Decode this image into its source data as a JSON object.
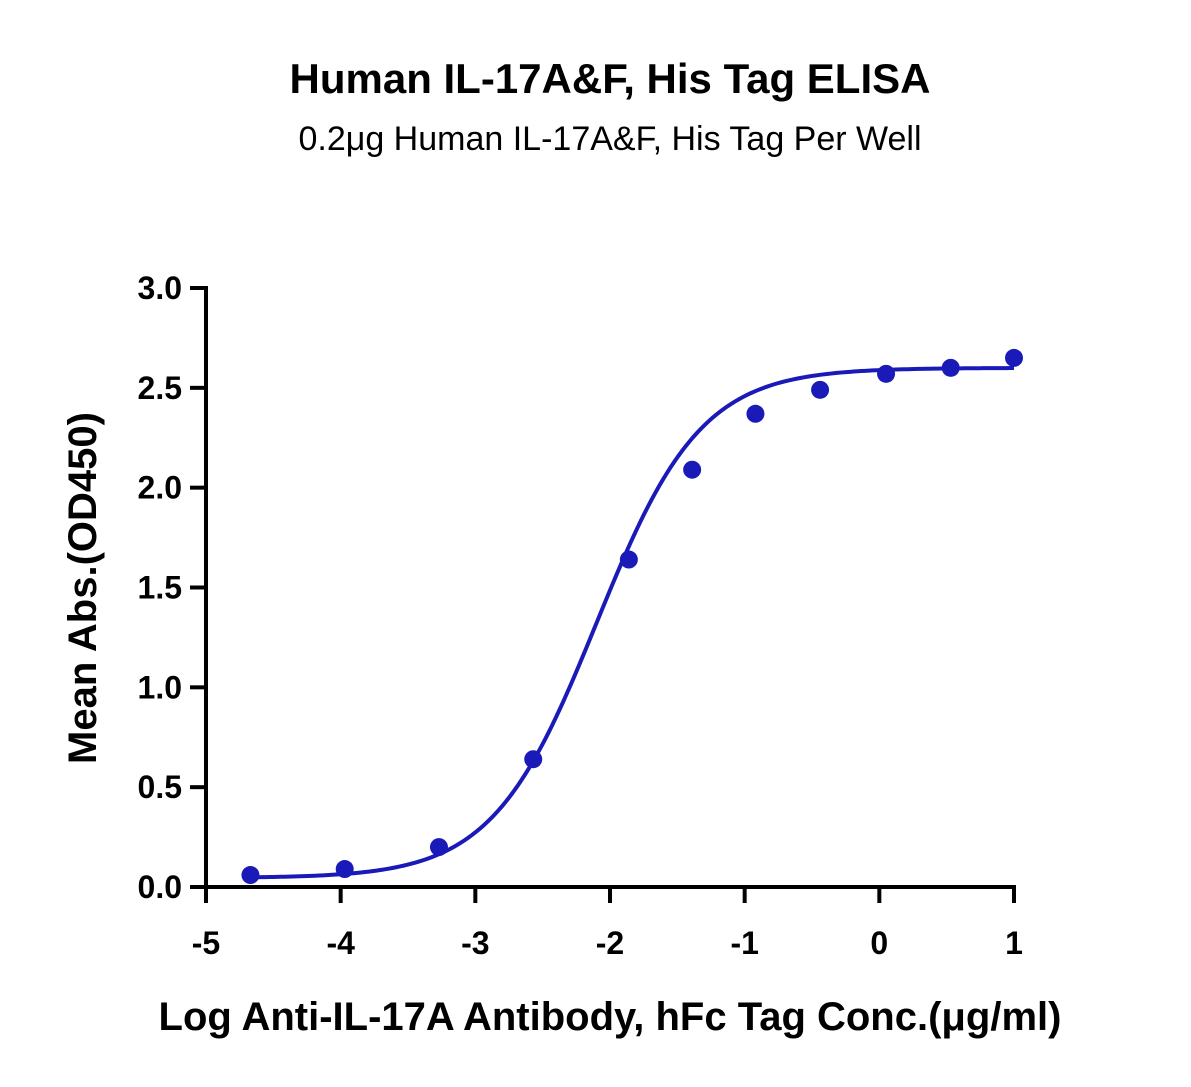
{
  "chart_data": {
    "type": "scatter",
    "title": "Human IL-17A&F, His Tag ELISA",
    "subtitle": "0.2μg Human IL-17A&F, His Tag Per Well",
    "xlabel": "Log Anti-IL-17A Antibody, hFc Tag Conc.(μg/ml)",
    "ylabel": "Mean Abs.(OD450)",
    "xlim": [
      -5,
      1
    ],
    "ylim": [
      0,
      3.0
    ],
    "x_ticks": [
      -5,
      -4,
      -3,
      -2,
      -1,
      0,
      1
    ],
    "y_ticks": [
      0,
      0.5,
      1.0,
      1.5,
      2.0,
      2.5,
      3.0
    ],
    "x_tick_labels": [
      "-5",
      "-4",
      "-3",
      "-2",
      "-1",
      "0",
      "1"
    ],
    "y_tick_labels": [
      "0.0",
      "0.5",
      "1.0",
      "1.5",
      "2.0",
      "2.5",
      "3.0"
    ],
    "grid": false,
    "color": "#1a1ab8",
    "series": [
      {
        "x": [
          -4.67,
          -3.97,
          -3.27,
          -2.57,
          -1.86,
          -1.39,
          -0.92,
          -0.44,
          0.05,
          0.53,
          1.0
        ],
        "values": [
          0.06,
          0.09,
          0.2,
          0.64,
          1.64,
          2.09,
          2.37,
          2.49,
          2.57,
          2.6,
          2.65
        ],
        "fit": {
          "model": "4PL",
          "bottom": 0.045,
          "top": 2.6,
          "logEC50": -2.1,
          "hill": 1.12
        }
      }
    ]
  }
}
